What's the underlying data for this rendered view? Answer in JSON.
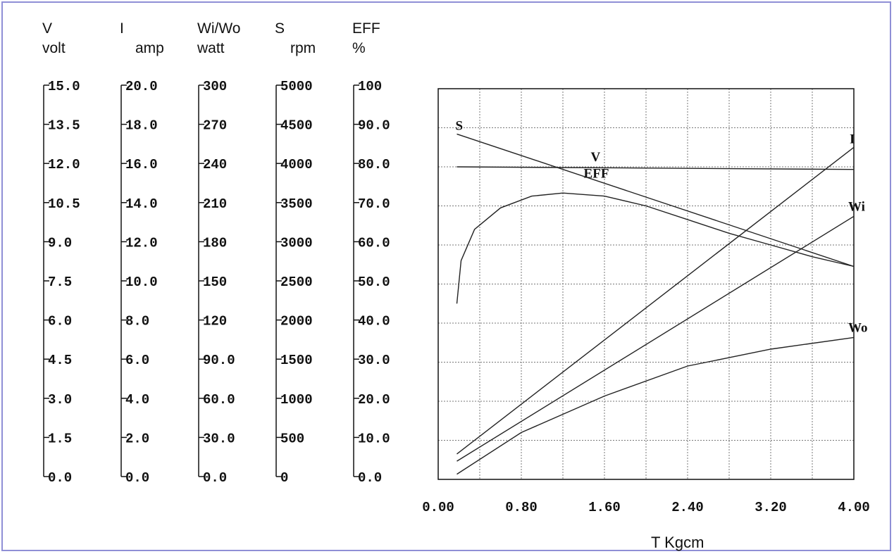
{
  "chart_data": {
    "type": "line",
    "xlabel": "T Kgcm",
    "x_ticks": [
      "0.00",
      "0.80",
      "1.60",
      "2.40",
      "3.20",
      "4.00"
    ],
    "xlim": [
      0,
      4.0
    ],
    "grid": true,
    "axes": [
      {
        "id": "V",
        "symbol": "V",
        "unit": "volt",
        "ticks": [
          "15.0",
          "13.5",
          "12.0",
          "10.5",
          "9.0",
          "7.5",
          "6.0",
          "4.5",
          "3.0",
          "1.5",
          "0.0"
        ],
        "range": [
          0,
          15
        ]
      },
      {
        "id": "I",
        "symbol": "I",
        "unit": "amp",
        "ticks": [
          "20.0",
          "18.0",
          "16.0",
          "14.0",
          "12.0",
          "10.0",
          "8.0",
          "6.0",
          "4.0",
          "2.0",
          "0.0"
        ],
        "range": [
          0,
          20
        ]
      },
      {
        "id": "W",
        "symbol": "Wi/Wo",
        "unit": "watt",
        "ticks": [
          "300",
          "270",
          "240",
          "210",
          "180",
          "150",
          "120",
          "90.0",
          "60.0",
          "30.0",
          "0.0"
        ],
        "range": [
          0,
          300
        ]
      },
      {
        "id": "S",
        "symbol": "S",
        "unit": "rpm",
        "ticks": [
          "5000",
          "4500",
          "4000",
          "3500",
          "3000",
          "2500",
          "2000",
          "1500",
          "1000",
          "500",
          "0"
        ],
        "range": [
          0,
          5000
        ]
      },
      {
        "id": "EFF",
        "symbol": "EFF",
        "unit": "%",
        "ticks": [
          "100",
          "90.0",
          "80.0",
          "70.0",
          "60.0",
          "50.0",
          "40.0",
          "30.0",
          "20.0",
          "10.0",
          "0.0"
        ],
        "range": [
          0,
          100
        ]
      }
    ],
    "series": [
      {
        "name": "S",
        "axis": "S",
        "x": [
          0.18,
          4.0
        ],
        "y": [
          4420,
          2725
        ]
      },
      {
        "name": "V",
        "axis": "V",
        "x": [
          0.18,
          4.0
        ],
        "y": [
          12.0,
          11.9
        ]
      },
      {
        "name": "I",
        "axis": "I",
        "x": [
          0.18,
          4.0
        ],
        "y": [
          1.3,
          17.0
        ]
      },
      {
        "name": "Wi",
        "axis": "W",
        "x": [
          0.18,
          4.0
        ],
        "y": [
          14,
          202
        ]
      },
      {
        "name": "Wo",
        "axis": "W",
        "x": [
          0.18,
          0.8,
          1.6,
          2.4,
          3.2,
          4.0
        ],
        "y": [
          4,
          36,
          64,
          87,
          100,
          109
        ]
      },
      {
        "name": "EFF",
        "axis": "EFF",
        "x": [
          0.18,
          0.22,
          0.35,
          0.6,
          0.9,
          1.2,
          1.6,
          2.0,
          2.4,
          2.8,
          3.2,
          3.6,
          4.0
        ],
        "y": [
          45,
          56,
          64,
          69.5,
          72.5,
          73.3,
          72.5,
          70,
          66.5,
          63,
          60,
          57,
          54.5
        ]
      }
    ],
    "curve_labels": [
      {
        "series": "S",
        "text": "S"
      },
      {
        "series": "V",
        "text": "V"
      },
      {
        "series": "EFF",
        "text": "EFF"
      },
      {
        "series": "I",
        "text": "I"
      },
      {
        "series": "Wi",
        "text": "Wi"
      },
      {
        "series": "Wo",
        "text": "Wo"
      }
    ]
  }
}
